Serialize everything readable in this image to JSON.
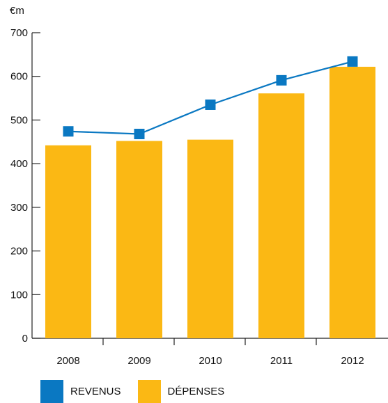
{
  "chart_data": {
    "type": "bar",
    "unit_label": "€m",
    "categories": [
      "2008",
      "2009",
      "2010",
      "2011",
      "2012"
    ],
    "series": [
      {
        "name": "DÉPENSES",
        "kind": "bar",
        "color": "#FBB814",
        "values": [
          442,
          452,
          455,
          561,
          622
        ]
      },
      {
        "name": "REVENUS",
        "kind": "line",
        "color": "#0A78C2",
        "values": [
          474,
          468,
          535,
          591,
          634
        ]
      }
    ],
    "ylim": [
      0,
      700
    ],
    "yticks": [
      0,
      100,
      200,
      300,
      400,
      500,
      600,
      700
    ],
    "grid": false,
    "legend_position": "bottom-left"
  },
  "legend": {
    "revenus_label": "REVENUS",
    "depenses_label": "DÉPENSES"
  }
}
